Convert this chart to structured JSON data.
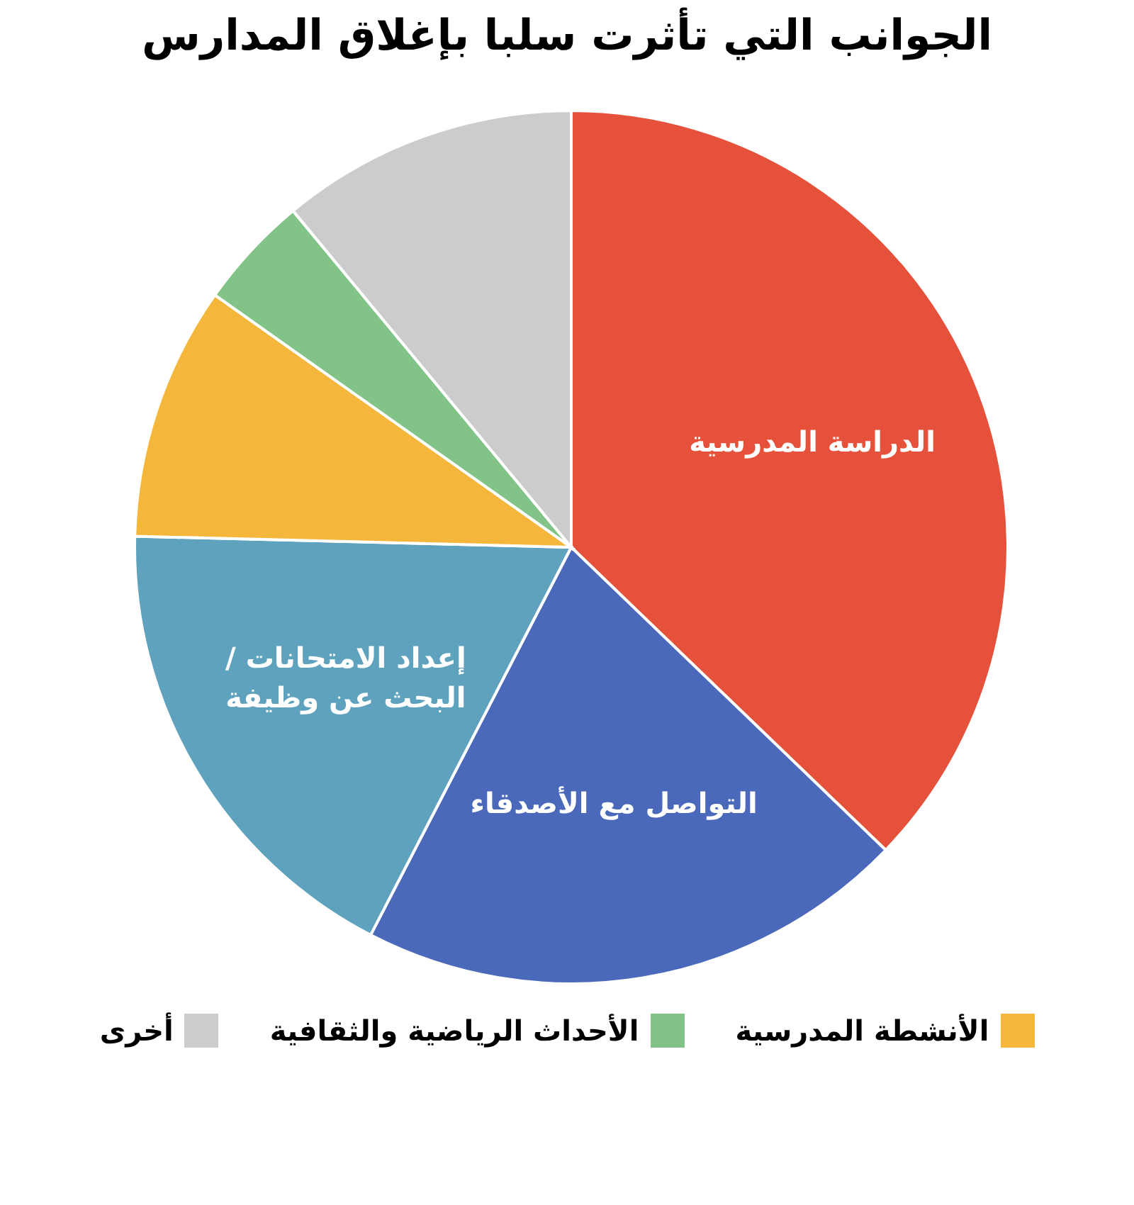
{
  "chart_data": {
    "type": "pie",
    "title": "الجوانب التي تأثرت سلبا بإغلاق المدارس",
    "categories": [
      "الدراسة المدرسية",
      "التواصل مع الأصدقاء",
      "إعداد الامتحانات / البحث عن وظيفة",
      "الأنشطة المدرسية",
      "الأحداث الرياضية والثقافية",
      "أخرى"
    ],
    "values": [
      37.2,
      20.4,
      17.8,
      9.4,
      4.2,
      11.0
    ],
    "colors": [
      "#e5513a",
      "#4a69bb",
      "#5fa2bd",
      "#f5b73b",
      "#82c487",
      "#cccccc"
    ],
    "legend": "bottom"
  }
}
